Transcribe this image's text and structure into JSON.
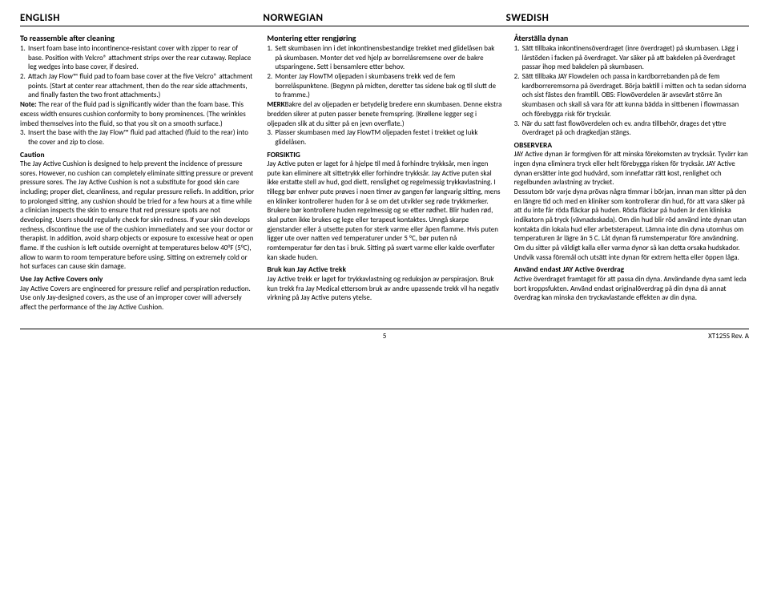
{
  "headers": {
    "en": "ENGLISH",
    "no": "NORWEGIAN",
    "sv": "SWEDISH"
  },
  "en": {
    "title": "To reassemble after cleaning",
    "item1": "Insert foam base into incontinence-resistant cover with zipper to rear of base. Position with Velcro® attachment strips over the rear cutaway. Replace leg wedges into base cover, if desired.",
    "item2": "Attach Jay Flow™ fluid pad to foam base cover at the five Velcro® attachment points. (Start at center rear attachment, then do the rear side attachments, and finally fasten the two front attachments.)",
    "note": "Note:",
    "noteText": "The rear of the fluid pad is significantly wider than the foam base. This excess width ensures cushion conformity to bony prominences. (The wrinkles imbed themselves into the fluid, so that you sit on a smooth surface.)",
    "item3": "Insert the base with the Jay Flow™ fluid pad attached (fluid to the rear) into the cover and zip to close.",
    "cautionTitle": "Caution",
    "cautionText": "The Jay Active Cushion is designed to help prevent the incidence of pressure sores. However, no cushion can completely eliminate sitting pressure or prevent pressure sores. The Jay Active Cushion is not a substitute for good skin care including; proper diet, cleanliness, and regular pressure reliefs. In addition, prior to prolonged sitting, any cushion should be tried for a few hours at a time while a clinician inspects the skin to ensure that red pressure spots are not developing. Users should regularly check for skin redness. If your skin develops redness, discontinue the use of the cushion immediately and see your doctor or therapist. In addition, avoid sharp objects or exposure to excessive heat or open flame. If the cushion is left outside overnight at temperatures below 40°F (5°C), allow to warm to room temperature before using. Sitting on extremely cold or hot surfaces can cause skin damage.",
    "coversTitle": "Use Jay Active Covers only",
    "coversText": "Jay Active Covers are engineered for pressure relief and perspiration reduction. Use only Jay-designed covers, as the use of an improper cover will adversely affect the performance of the Jay Active Cushion."
  },
  "no": {
    "title": "Montering etter rengjøring",
    "item1": "Sett skumbasen inn i det inkontinensbestandige trekket med glidelåsen bak på skumbasen. Monter det ved hjelp av borrelåsremsene over de bakre utsparingene. Sett i bensamlere etter behov.",
    "item2": "Monter Jay FlowTM oljepaden i skumbasens trekk ved de fem borrelåspunktene. (Begynn på midten, deretter tas sidene bak og til slutt de to framme.)",
    "merkTitle": "MERK",
    "merkText": "Bakre del av oljepaden er betydelig bredere enn skumbasen. Denne ekstra bredden sikrer at puten passer benete fremspring. (Krøllene legger seg i oljepaden slik at du sitter på en jevn overflate.)",
    "item3": "Plasser skumbasen med Jay FlowTM oljepaden festet i trekket og lukk glidelåsen.",
    "forsiktigTitle": "FORSIKTIG",
    "forsiktigText": "Jay Active puten er laget for å hjelpe til med å forhindre trykksår, men ingen pute kan eliminere alt sittetrykk eller forhindre trykksår. Jay Active puten skal ikke erstatte stell av hud, god diett, renslighet og regelmessig trykkavlastning. I tillegg bør enhver pute prøves i noen timer av gangen før langvarig sitting, mens en kliniker kontrollerer huden for å se om det utvikler seg røde trykkmerker.",
    "forsiktigText2": "Brukere bør kontrollere huden regelmessig og se etter rødhet. Blir huden rød, skal puten ikke brukes og lege eller terapeut kontaktes. Unngå skarpe gjenstander eller å utsette puten for sterk varme eller åpen flamme. Hvis puten ligger ute over natten ved temperaturer under 5 °C, bør puten nå romtemperatur før den tas i bruk. Sitting på svært varme eller kalde overflater kan skade huden.",
    "brukTitle": "Bruk kun Jay Active trekk",
    "brukText": "Jay Active trekk er laget for trykkavlastning og reduksjon av perspirasjon. Bruk kun trekk fra Jay Medical ettersom bruk av andre upassende trekk vil ha negativ virkning på Jay Active putens ytelse."
  },
  "sv": {
    "title": "Återställa dynan",
    "item1": "Sätt tillbaka inkontinensöverdraget (inre överdraget) på skumbasen. Lägg i lårstöden i facken på överdraget. Var säker på att bakdelen på överdraget passar ihop med bakdelen på skumbasen.",
    "item2": "Sätt tillbaka JAY Flowdelen och passa in kardborrebanden på de fem kardborreremsorna på överdraget. Börja baktill i mitten och ta sedan sidorna och sist fästes den framtill. OBS: Flowöverdelen är avsevärt större än skumbasen och skall så vara för att kunna bädda in sittbenen i flowmassan och förebygga risk för trycksår.",
    "item3": "När du satt fast flowöverdelen och ev. andra tillbehör, drages det yttre överdraget på och dragkedjan stängs.",
    "observeraTitle": "OBSERVERA",
    "observeraText": "JAY Active dynan är formgiven för att minska förekomsten av trycksår. Tyvärr kan ingen dyna eliminera tryck eller helt förebygga risken för trycksår. JAY Active dynan ersätter inte god hudvård, som innefattar rätt kost, renlighet och regelbunden avlastning av trycket.",
    "observeraText2": "Dessutom bör varje dyna prövas några timmar i början, innan man sitter på den en längre tid och med en kliniker som kontrollerar din hud, för att vara säker på att du inte får röda fläckar på huden. Röda fläckar på huden är den kliniska indikatorn på tryck (vävnadsskada). Om din hud blir röd använd inte dynan utan kontakta din lokala hud eller arbetsterapeut. Lämna inte din dyna utomhus om temperaturen är lägre än 5 C. Låt dynan få rumstemperatur före användning. Om du sitter på väldigt kalla eller varma dynor så kan detta orsaka hudskador. Undvik vassa föremål och utsätt inte dynan för extrem hetta eller öppen låga.",
    "anvandTitle": "Använd endast JAY Active överdrag",
    "anvandText": "Active överdraget framtaget för att passa din dyna. Användande dyna samt leda bort kroppsfukten. Använd endast originalöverdrag på din dyna då annat överdrag kan minska den tryckavlastande effekten av din dyna."
  },
  "footer": {
    "page": "5",
    "rev": "XT125S Rev. A"
  }
}
